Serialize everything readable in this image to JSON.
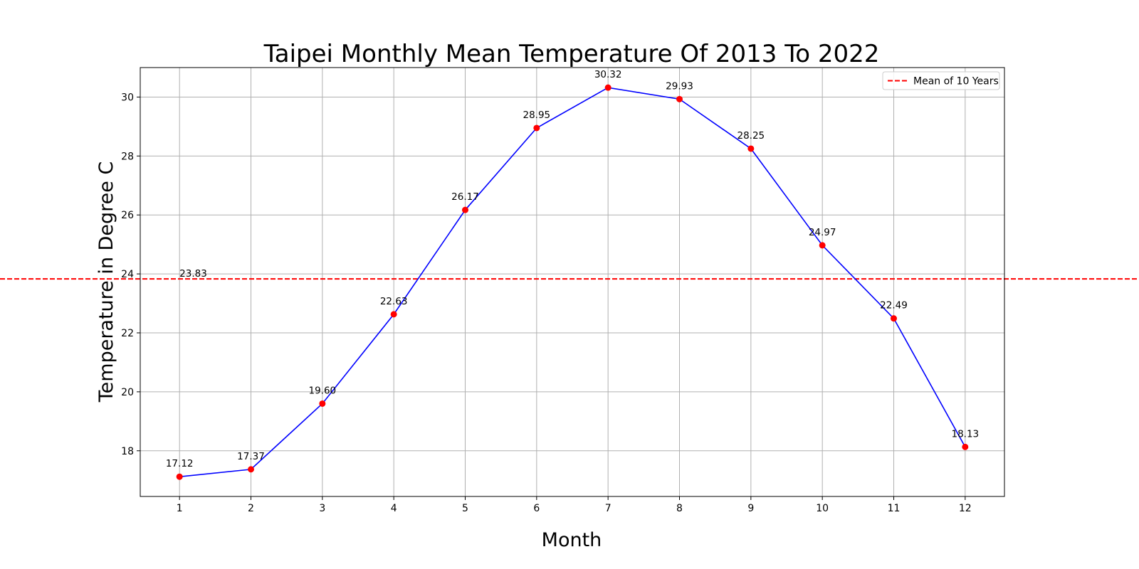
{
  "chart_data": {
    "type": "line",
    "title": "Taipei Monthly Mean Temperature Of 2013 To 2022",
    "xlabel": "Month",
    "ylabel": "Temperature in Degree C",
    "x": [
      1,
      2,
      3,
      4,
      5,
      6,
      7,
      8,
      9,
      10,
      11,
      12
    ],
    "series": [
      {
        "values": [
          17.12,
          17.37,
          19.6,
          22.63,
          26.17,
          28.95,
          30.32,
          29.93,
          28.25,
          24.97,
          22.49,
          18.13
        ],
        "labels": [
          "17.12",
          "17.37",
          "19.60",
          "22.63",
          "26.17",
          "28.95",
          "30.32",
          "29.93",
          "28.25",
          "24.97",
          "22.49",
          "18.13"
        ],
        "line_color": "#0000ff",
        "marker_color": "#ff0000"
      }
    ],
    "mean_line": {
      "name": "Mean of 10 Years",
      "value": 23.83,
      "label": "23.83",
      "color": "#ff0000",
      "style": "dashed"
    },
    "xticks": [
      "1",
      "2",
      "3",
      "4",
      "5",
      "6",
      "7",
      "8",
      "9",
      "10",
      "11",
      "12"
    ],
    "yticks": [
      18,
      20,
      22,
      24,
      26,
      28,
      30
    ],
    "xlim": [
      0.45,
      12.55
    ],
    "ylim": [
      16.45,
      31.0
    ],
    "grid": true,
    "legend_position": "top-right"
  }
}
